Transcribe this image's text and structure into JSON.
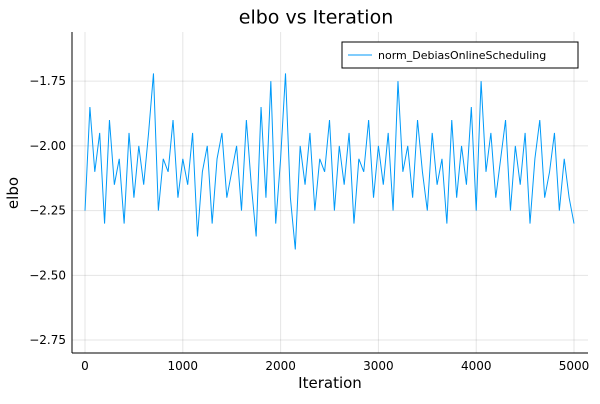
{
  "chart_data": {
    "type": "line",
    "title": "elbo vs Iteration",
    "x_label": "Iteration",
    "y_label": "elbo",
    "x": [
      0,
      50,
      100,
      150,
      200,
      250,
      300,
      350,
      400,
      450,
      500,
      550,
      600,
      650,
      700,
      750,
      800,
      850,
      900,
      950,
      1000,
      1050,
      1100,
      1150,
      1200,
      1250,
      1300,
      1350,
      1400,
      1450,
      1500,
      1550,
      1600,
      1650,
      1700,
      1750,
      1800,
      1850,
      1900,
      1950,
      2000,
      2050,
      2100,
      2150,
      2200,
      2250,
      2300,
      2350,
      2400,
      2450,
      2500,
      2550,
      2600,
      2650,
      2700,
      2750,
      2800,
      2850,
      2900,
      2950,
      3000,
      3050,
      3100,
      3150,
      3200,
      3250,
      3300,
      3350,
      3400,
      3450,
      3500,
      3550,
      3600,
      3650,
      3700,
      3750,
      3800,
      3850,
      3900,
      3950,
      4000,
      4050,
      4100,
      4150,
      4200,
      4250,
      4300,
      4350,
      4400,
      4450,
      4500,
      4550,
      4600,
      4650,
      4700,
      4750,
      4800,
      4850,
      4900,
      4950,
      5000
    ],
    "series": [
      {
        "name": "norm_DebiasOnlineScheduling",
        "color": "#009af9",
        "values": [
          -2.25,
          -1.85,
          -2.1,
          -1.95,
          -2.3,
          -1.9,
          -2.15,
          -2.05,
          -2.3,
          -1.95,
          -2.2,
          -2.0,
          -2.15,
          -1.95,
          -1.72,
          -2.25,
          -2.05,
          -2.1,
          -1.9,
          -2.2,
          -2.05,
          -2.15,
          -1.95,
          -2.35,
          -2.1,
          -2.0,
          -2.3,
          -2.05,
          -1.95,
          -2.2,
          -2.1,
          -2.0,
          -2.25,
          -1.9,
          -2.15,
          -2.35,
          -1.85,
          -2.2,
          -1.75,
          -2.3,
          -2.05,
          -1.72,
          -2.2,
          -2.4,
          -2.0,
          -2.15,
          -1.95,
          -2.25,
          -2.05,
          -2.1,
          -1.9,
          -2.25,
          -2.0,
          -2.15,
          -1.95,
          -2.3,
          -2.05,
          -2.1,
          -1.9,
          -2.2,
          -2.0,
          -2.15,
          -1.95,
          -2.25,
          -1.75,
          -2.1,
          -2.0,
          -2.2,
          -1.9,
          -2.1,
          -2.25,
          -1.95,
          -2.15,
          -2.05,
          -2.3,
          -1.9,
          -2.2,
          -2.0,
          -2.15,
          -1.85,
          -2.25,
          -1.75,
          -2.1,
          -1.95,
          -2.2,
          -2.05,
          -1.9,
          -2.25,
          -2.0,
          -2.15,
          -1.95,
          -2.3,
          -2.05,
          -1.9,
          -2.2,
          -2.1,
          -1.95,
          -2.25,
          -2.05,
          -2.2,
          -2.3
        ]
      }
    ],
    "xlim": [
      -133,
      5143
    ],
    "xticks": [
      0,
      1000,
      2000,
      3000,
      4000,
      5000
    ],
    "ylim": [
      -2.8,
      -1.56
    ],
    "yticks": [
      {
        "value": -2.75,
        "label": "−2.75"
      },
      {
        "value": -2.5,
        "label": "−2.50"
      },
      {
        "value": -2.25,
        "label": "−2.25"
      },
      {
        "value": -2.0,
        "label": "−2.00"
      },
      {
        "value": -1.75,
        "label": "−1.75"
      }
    ],
    "grid": true,
    "legend": "top-right"
  }
}
